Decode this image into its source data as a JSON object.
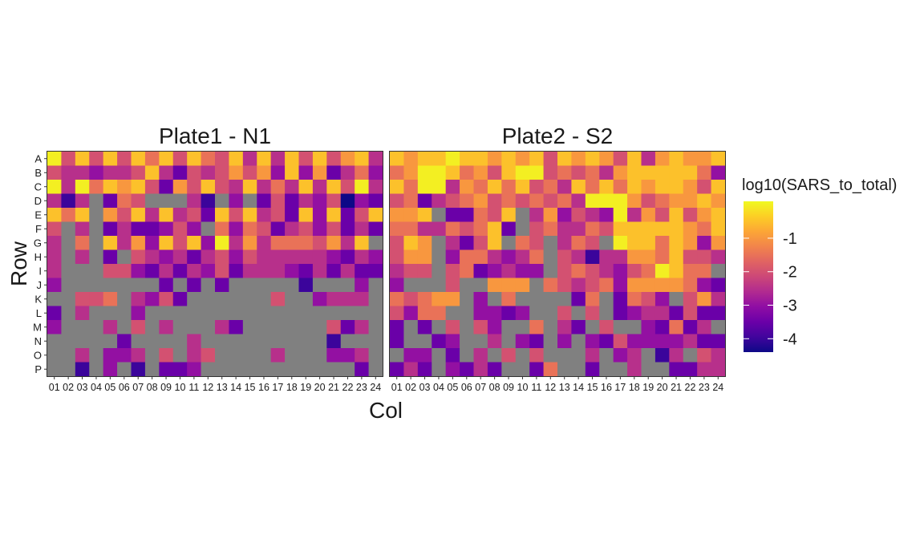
{
  "chart_data": {
    "type": "heatmap",
    "xlabel": "Col",
    "ylabel": "Row",
    "legend": {
      "title": "log10(SARS_to_total)",
      "ticks": [
        -1,
        -2,
        -3,
        -4
      ],
      "tick_labels": [
        "-1",
        "-2",
        "-3",
        "-4"
      ],
      "range": [
        -4.4,
        0.1
      ],
      "colormap": "plasma",
      "placement": "right"
    },
    "rows": [
      "A",
      "B",
      "C",
      "D",
      "E",
      "F",
      "G",
      "H",
      "I",
      "J",
      "K",
      "L",
      "M",
      "N",
      "O",
      "P"
    ],
    "cols": [
      "01",
      "02",
      "03",
      "04",
      "05",
      "06",
      "07",
      "08",
      "09",
      "10",
      "11",
      "12",
      "13",
      "14",
      "15",
      "16",
      "17",
      "18",
      "19",
      "20",
      "21",
      "22",
      "23",
      "24"
    ],
    "missing_color": "#808080",
    "panels": [
      {
        "title": "Plate1 - N1",
        "values": [
          [
            0,
            -2,
            -0.5,
            -2,
            -0.5,
            -2,
            -0.5,
            -1.5,
            -0.5,
            -2,
            -0.5,
            -1.5,
            -2,
            -0.5,
            -2.5,
            -0.5,
            -2.5,
            -0.5,
            -2,
            -0.5,
            -2,
            -1,
            -0.5,
            -2.5
          ],
          [
            -2,
            -2.5,
            -2.5,
            -3,
            -2.5,
            -2.5,
            -2,
            -0.5,
            -2.5,
            -3.5,
            -2,
            -2.5,
            -2,
            -1,
            -2,
            -1,
            -3,
            -0.5,
            -3,
            -1,
            -3.5,
            -2.5,
            -1.5,
            -3
          ],
          [
            0,
            -2.5,
            0,
            -1.5,
            -0.5,
            -1,
            -0.5,
            -2,
            -3.5,
            -1,
            -2,
            -0.5,
            -2,
            -2.5,
            -0.5,
            -2.5,
            -1.5,
            -2.5,
            -0.5,
            -2.5,
            -0.5,
            -2,
            0,
            -2.5
          ],
          [
            -2.5,
            -4,
            -2.5,
            null,
            -3.5,
            -1.5,
            -2,
            null,
            null,
            null,
            -2.5,
            -4,
            null,
            -3,
            null,
            -3.5,
            -2,
            -3.5,
            -2.5,
            -3,
            -2,
            -4.4,
            -3,
            -3.5
          ],
          [
            -0.5,
            -1.5,
            -0.5,
            null,
            -1,
            -2,
            -0.5,
            -2.5,
            -0.5,
            -2.5,
            -2,
            -3.5,
            -0.5,
            -2,
            -0.5,
            -2.5,
            -2,
            -3.5,
            -0.5,
            -3,
            -0.5,
            -3.5,
            -2,
            -0.5
          ],
          [
            -2,
            null,
            -2.5,
            null,
            -3.5,
            -2.5,
            -3.5,
            -3.5,
            -3,
            -2,
            -3,
            null,
            -1.5,
            -3,
            -1.5,
            -2,
            -3.5,
            -2.5,
            -2,
            -3,
            -2,
            -3.5,
            -2.5,
            -3.5
          ],
          [
            -2.5,
            null,
            -1.5,
            null,
            -0.5,
            -2.5,
            -1,
            -3,
            -0.5,
            -2,
            -0.5,
            -3,
            0,
            -2.5,
            -1,
            -2.5,
            -1.5,
            -1.5,
            -1.5,
            -2,
            -1,
            -2.5,
            -0.5,
            null
          ],
          [
            -2.5,
            null,
            -2.5,
            null,
            -3.5,
            null,
            -2,
            -2.5,
            -3,
            -2.5,
            -3.5,
            -2.5,
            -2,
            -3,
            -2,
            -2.5,
            -2.5,
            -2.5,
            -2.5,
            -2.5,
            -3,
            -3.5,
            -2.5,
            -3
          ],
          [
            -2.5,
            null,
            null,
            null,
            -2,
            -2,
            -3,
            -3.5,
            -2.5,
            -3.5,
            -2.5,
            -3,
            -2,
            -3.5,
            -2.5,
            -2.5,
            -2.5,
            -3,
            -3.5,
            -2.5,
            -3.5,
            -2.5,
            -3.5,
            -3.5
          ],
          [
            -3,
            null,
            null,
            null,
            null,
            null,
            null,
            null,
            -3.5,
            null,
            -3.5,
            null,
            -3.5,
            null,
            null,
            null,
            null,
            null,
            -4,
            null,
            null,
            null,
            -3,
            null
          ],
          [
            null,
            null,
            -2,
            -2,
            -1.5,
            null,
            -2.5,
            -3,
            -2,
            -3.5,
            null,
            null,
            null,
            null,
            null,
            null,
            -2,
            null,
            null,
            -3,
            -2.5,
            -2.5,
            -2.5,
            null
          ],
          [
            -3.5,
            null,
            -2.5,
            null,
            null,
            null,
            -3,
            null,
            null,
            null,
            null,
            null,
            null,
            null,
            null,
            null,
            null,
            null,
            null,
            null,
            null,
            null,
            null,
            null
          ],
          [
            -3,
            null,
            null,
            null,
            -2.5,
            null,
            -2,
            null,
            -2.5,
            null,
            null,
            null,
            -2.5,
            -3.5,
            null,
            null,
            null,
            null,
            null,
            null,
            -2,
            -3.5,
            -2.5,
            null
          ],
          [
            null,
            null,
            null,
            null,
            null,
            -3.5,
            null,
            null,
            null,
            null,
            -2.5,
            null,
            null,
            null,
            null,
            null,
            null,
            null,
            null,
            null,
            -4,
            null,
            null,
            null
          ],
          [
            null,
            null,
            -2.5,
            null,
            -3,
            -3,
            -2.5,
            null,
            -2,
            null,
            -2.5,
            -2,
            null,
            null,
            null,
            null,
            -2.5,
            null,
            null,
            null,
            -3,
            -3,
            -2.5,
            null
          ],
          [
            null,
            null,
            -4,
            null,
            -3,
            null,
            -4,
            null,
            -3.5,
            -3.5,
            -3,
            null,
            null,
            null,
            null,
            null,
            null,
            null,
            null,
            null,
            null,
            null,
            -3.5,
            null
          ]
        ]
      },
      {
        "title": "Plate2 - S2",
        "values": [
          [
            -0.5,
            -1,
            -0.5,
            -0.5,
            0,
            -0.5,
            -0.5,
            -1,
            -0.5,
            -1,
            -0.5,
            -2,
            -0.5,
            -1,
            -0.5,
            -1,
            -2,
            -0.5,
            -2.5,
            -1,
            -0.5,
            -1,
            -1,
            -0.5
          ],
          [
            -1.5,
            -1,
            0,
            0,
            -0.5,
            -1.5,
            -1,
            -2,
            -0.5,
            0,
            0,
            -2,
            -1.5,
            -2,
            -1.5,
            -2.5,
            -1,
            -0.5,
            -0.5,
            -0.5,
            -0.5,
            -0.5,
            -1.5,
            -3
          ],
          [
            -0.5,
            -1.5,
            0,
            0,
            -2.5,
            -1,
            -1.5,
            -0.5,
            -1.5,
            -0.5,
            -2,
            -1.5,
            -2.5,
            -0.5,
            -1.5,
            -0.5,
            -1.5,
            -0.5,
            -1,
            -0.5,
            -0.5,
            -1,
            -2,
            -0.5
          ],
          [
            -2,
            -1.5,
            -3.5,
            -2.5,
            -2,
            -1.5,
            -1,
            -2,
            -1.5,
            -2,
            -1.5,
            -2,
            -1.5,
            -2.5,
            0,
            0,
            0,
            -1,
            -2,
            -1.5,
            -1,
            -1,
            -0.5,
            -1
          ],
          [
            -1,
            -1,
            -0.5,
            null,
            -3.5,
            -3.5,
            -1.5,
            -2,
            -0.5,
            null,
            -2.5,
            -1,
            -3,
            -2,
            -2.5,
            -3,
            0,
            -2.5,
            -1,
            -2,
            -0.5,
            -2,
            -1,
            -0.5
          ],
          [
            -1.5,
            -1.5,
            -2.5,
            -2.5,
            -1.5,
            -2,
            -1.5,
            -0.5,
            -3.5,
            null,
            -2,
            -1.5,
            -2.5,
            -2.5,
            -1.5,
            -2,
            -0.5,
            -0.5,
            -0.5,
            -0.5,
            -0.5,
            -1,
            -1.5,
            -0.5
          ],
          [
            -2,
            -0.5,
            -1,
            null,
            -2.5,
            -3.5,
            -2,
            -0.5,
            null,
            -1.5,
            -2,
            null,
            -2.5,
            -1.5,
            -2,
            null,
            0,
            -0.5,
            -0.5,
            -1.5,
            -0.5,
            -1,
            -3,
            -1
          ],
          [
            -2,
            -1,
            -1,
            null,
            -3,
            -1.5,
            -1.5,
            -2.5,
            -3,
            -2.5,
            -1.5,
            null,
            -2,
            -2.5,
            -4,
            -2.5,
            -2.5,
            -1,
            -1,
            -1.5,
            -0.5,
            -2,
            -2,
            -2.5
          ],
          [
            -2.5,
            -2,
            -2,
            null,
            -2,
            -1.5,
            -3.5,
            -3,
            -2.5,
            -3,
            -3,
            null,
            -2,
            -1.5,
            -2,
            -2.5,
            -3,
            -2,
            -1.5,
            0,
            -0.5,
            -1.5,
            -1.5,
            null
          ],
          [
            -3,
            null,
            null,
            null,
            -2,
            null,
            null,
            -1,
            -1,
            -1,
            null,
            -1.5,
            -2,
            -2.5,
            -2,
            -1.5,
            -3,
            -1,
            -1,
            -1,
            -1,
            -1.5,
            -3,
            -3.5
          ],
          [
            -1.5,
            -2,
            -1.5,
            -1,
            -1,
            null,
            -3,
            null,
            -1.5,
            null,
            null,
            null,
            null,
            -3.5,
            -1.5,
            null,
            -3.5,
            -1.5,
            -2,
            -3,
            null,
            -2,
            -1,
            -2.5
          ],
          [
            -2,
            -3,
            -1.5,
            -1.5,
            null,
            null,
            -3,
            -3,
            -3.5,
            -3,
            null,
            null,
            -2,
            null,
            -2,
            null,
            -3.5,
            -3,
            -2.5,
            -2.5,
            -3.5,
            -2,
            -3.5,
            -3.5
          ],
          [
            -3.5,
            null,
            -3.5,
            null,
            -2,
            null,
            -2,
            -3,
            null,
            null,
            -1.5,
            null,
            -2.5,
            -3.5,
            null,
            -2,
            null,
            null,
            -3,
            -3.5,
            -1.5,
            -3.5,
            -2.5,
            null
          ],
          [
            -3.5,
            null,
            null,
            -3.5,
            -3,
            null,
            null,
            -2.5,
            null,
            -3,
            -3.5,
            null,
            -3,
            null,
            -3,
            -3.5,
            -2,
            -3,
            -3,
            -3,
            -3,
            -2.5,
            -3.5,
            -3.5
          ],
          [
            null,
            -3,
            -3,
            null,
            -3.5,
            null,
            -2.5,
            null,
            -2,
            null,
            -2,
            null,
            null,
            null,
            -2.5,
            null,
            -3,
            -2.5,
            null,
            -4,
            -2.5,
            null,
            -2,
            -2.5
          ],
          [
            -3.5,
            -2.5,
            -3.5,
            null,
            -3,
            -3.5,
            -2.5,
            -3.5,
            null,
            null,
            -3.5,
            -1.5,
            null,
            null,
            -3.5,
            null,
            null,
            -2.5,
            null,
            null,
            -3.5,
            -3.5,
            -2.5,
            -2.5
          ]
        ]
      }
    ]
  }
}
